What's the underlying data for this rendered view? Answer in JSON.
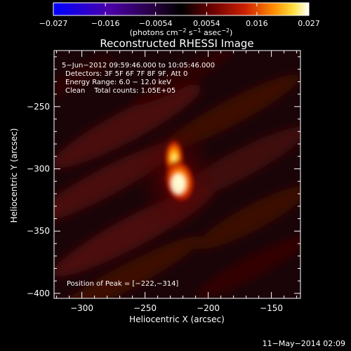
{
  "colorbar": {
    "tick_labels": [
      "−0.027",
      "−0.016",
      "−0.0054",
      "0.0054",
      "0.016",
      "0.027"
    ],
    "ticks": [
      -0.027,
      -0.016,
      -0.0054,
      0.0054,
      0.016,
      0.027
    ],
    "range": [
      -0.027,
      0.027
    ],
    "units_main": "(photons cm",
    "units_exp1": "−2",
    "units_mid": " s",
    "units_exp2": "−1",
    "units_mid2": " asec",
    "units_exp3": "−2",
    "units_end": ")"
  },
  "chart_data": {
    "type": "heatmap",
    "title": "Reconstructed RHESSI Image",
    "xlabel": "Heliocentric X (arcsec)",
    "ylabel": "Heliocentric Y (arcsec)",
    "xlim": [
      -322,
      -127
    ],
    "ylim": [
      -404,
      -205
    ],
    "x_ticks": [
      -300,
      -250,
      -200,
      -150
    ],
    "x_tick_labels": [
      "−300",
      "−250",
      "−200",
      "−150"
    ],
    "y_ticks": [
      -250,
      -300,
      -350,
      -400
    ],
    "y_tick_labels": [
      "−250",
      "−300",
      "−350",
      "−400"
    ],
    "peak": {
      "x": -222,
      "y": -314
    },
    "annotations": {
      "line1": "5−Jun−2012 09:59:46.000 to 10:05:46.000",
      "line2": "Detectors: 3F 5F 6F 7F 8F 9F, Att 0",
      "line3": "Energy Range: 6.0 − 12.0 keV",
      "line4": "Clean    Total counts: 1.05E+05",
      "peak_label": "Position of Peak = [−222,−314]"
    }
  },
  "footer": {
    "timestamp": "11−May−2014 02:09"
  }
}
